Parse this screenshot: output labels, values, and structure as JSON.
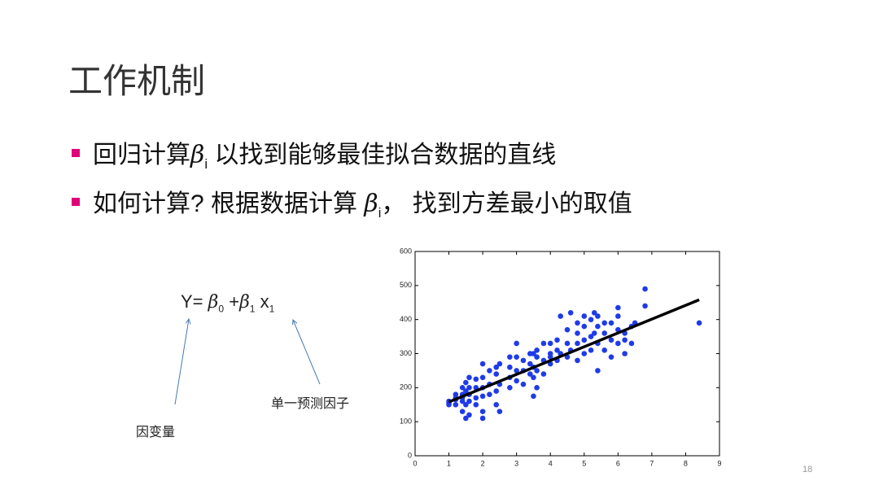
{
  "slide": {
    "title": "工作机制",
    "bullets": [
      {
        "before": "回归计算",
        "symbol": "β",
        "sub": "i",
        "after": " 以找到能够最佳拟合数据的直线"
      },
      {
        "before": "如何计算? 根据数据计算 ",
        "symbol": "β",
        "sub": "i",
        "after": "， 找到方差最小的取值"
      }
    ],
    "formula": {
      "lhs": "Y= ",
      "b0": "β",
      "b0_sub": "0",
      "plus": " +",
      "b1": "β",
      "b1_sub": "1",
      "x": " x",
      "x_sub": "1"
    },
    "annotations": [
      "因变量",
      "单一预测因子"
    ],
    "page_number": "18"
  },
  "chart_data": {
    "type": "scatter",
    "color": "#1f3be8",
    "x": [
      1.0,
      1.0,
      1.0,
      1.2,
      1.2,
      1.2,
      1.2,
      1.4,
      1.4,
      1.4,
      1.4,
      1.4,
      1.5,
      1.5,
      1.5,
      1.5,
      1.6,
      1.6,
      1.6,
      1.6,
      1.6,
      1.8,
      1.8,
      1.8,
      1.8,
      2.0,
      2.0,
      2.0,
      2.0,
      2.0,
      2.0,
      2.2,
      2.2,
      2.2,
      2.4,
      2.4,
      2.4,
      2.4,
      2.5,
      2.5,
      2.5,
      2.8,
      2.8,
      2.8,
      2.8,
      3.0,
      3.0,
      3.0,
      3.0,
      3.2,
      3.2,
      3.2,
      3.4,
      3.4,
      3.4,
      3.5,
      3.5,
      3.5,
      3.5,
      3.6,
      3.6,
      3.6,
      3.6,
      3.8,
      3.8,
      3.8,
      4.0,
      4.0,
      4.0,
      4.0,
      4.2,
      4.2,
      4.2,
      4.3,
      4.3,
      4.5,
      4.5,
      4.5,
      4.6,
      4.6,
      4.8,
      4.8,
      4.8,
      4.8,
      5.0,
      5.0,
      5.0,
      5.0,
      5.2,
      5.2,
      5.2,
      5.3,
      5.3,
      5.4,
      5.4,
      5.4,
      5.4,
      5.6,
      5.6,
      5.6,
      5.8,
      5.8,
      5.8,
      6.0,
      6.0,
      6.0,
      6.0,
      6.2,
      6.2,
      6.2,
      6.4,
      6.4,
      6.5,
      6.8,
      6.8,
      8.4
    ],
    "y": [
      150,
      160,
      155,
      165,
      180,
      150,
      170,
      130,
      180,
      200,
      160,
      170,
      110,
      190,
      215,
      150,
      120,
      180,
      200,
      230,
      160,
      200,
      150,
      170,
      225,
      110,
      130,
      175,
      200,
      230,
      270,
      180,
      210,
      250,
      150,
      190,
      240,
      260,
      130,
      210,
      270,
      200,
      230,
      260,
      290,
      220,
      250,
      290,
      330,
      210,
      250,
      280,
      240,
      270,
      300,
      175,
      230,
      260,
      300,
      200,
      250,
      290,
      310,
      240,
      280,
      330,
      270,
      300,
      330,
      290,
      280,
      310,
      340,
      410,
      300,
      290,
      330,
      370,
      420,
      310,
      280,
      330,
      360,
      390,
      300,
      340,
      380,
      410,
      310,
      350,
      400,
      420,
      360,
      250,
      330,
      380,
      410,
      310,
      360,
      390,
      290,
      340,
      390,
      330,
      370,
      410,
      435,
      300,
      340,
      360,
      330,
      380,
      390,
      440,
      490,
      390
    ],
    "fit": {
      "color": "#000000",
      "x": [
        1.0,
        8.4
      ],
      "y": [
        158,
        458
      ]
    },
    "xlim": [
      0,
      9
    ],
    "xticks": [
      0,
      1,
      2,
      3,
      4,
      5,
      6,
      7,
      8,
      9
    ],
    "ylim": [
      0,
      600
    ],
    "yticks": [
      0,
      100,
      200,
      300,
      400,
      500,
      600
    ],
    "grid": false
  }
}
